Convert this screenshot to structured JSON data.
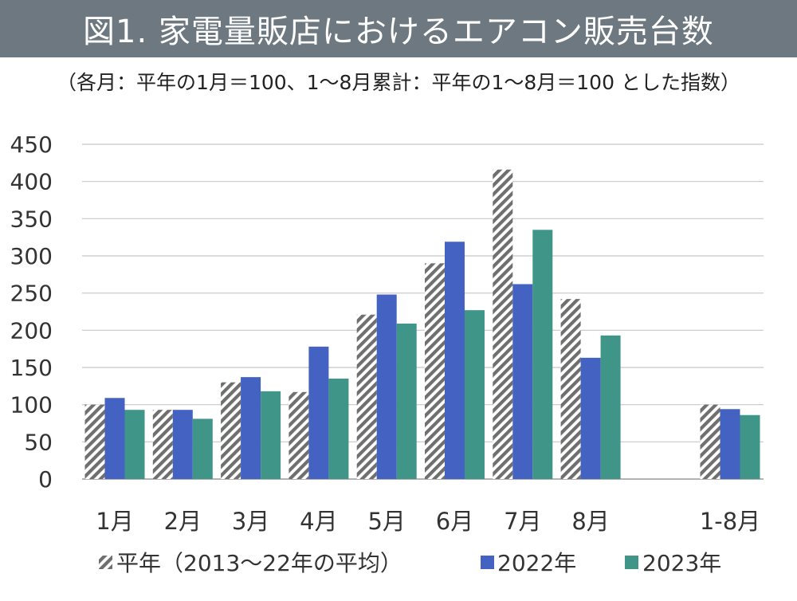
{
  "chart_data": {
    "type": "bar",
    "title": "図1.  家電量販店におけるエアコン販売台数",
    "subtitle": "（各月：平年の1月＝100、1～8月累計：平年の1～8月＝100 とした指数）",
    "categories": [
      "1月",
      "2月",
      "3月",
      "4月",
      "5月",
      "6月",
      "7月",
      "8月",
      "1-8月"
    ],
    "series": [
      {
        "name": "平年（2013～22年の平均）",
        "values": [
          100,
          93,
          130,
          117,
          221,
          290,
          416,
          242,
          100
        ],
        "color": "#7f7f7f",
        "pattern": "hatch"
      },
      {
        "name": "2022年",
        "values": [
          109,
          93,
          137,
          178,
          248,
          319,
          262,
          163,
          94
        ],
        "color": "#4462c2"
      },
      {
        "name": "2023年",
        "values": [
          93,
          81,
          118,
          135,
          209,
          227,
          335,
          193,
          86
        ],
        "color": "#3f9688"
      }
    ],
    "yticks": [
      "0",
      "50",
      "100",
      "150",
      "200",
      "250",
      "300",
      "350",
      "400",
      "450"
    ],
    "ylim": [
      0,
      450
    ],
    "grid": true,
    "legend_position": "bottom"
  }
}
